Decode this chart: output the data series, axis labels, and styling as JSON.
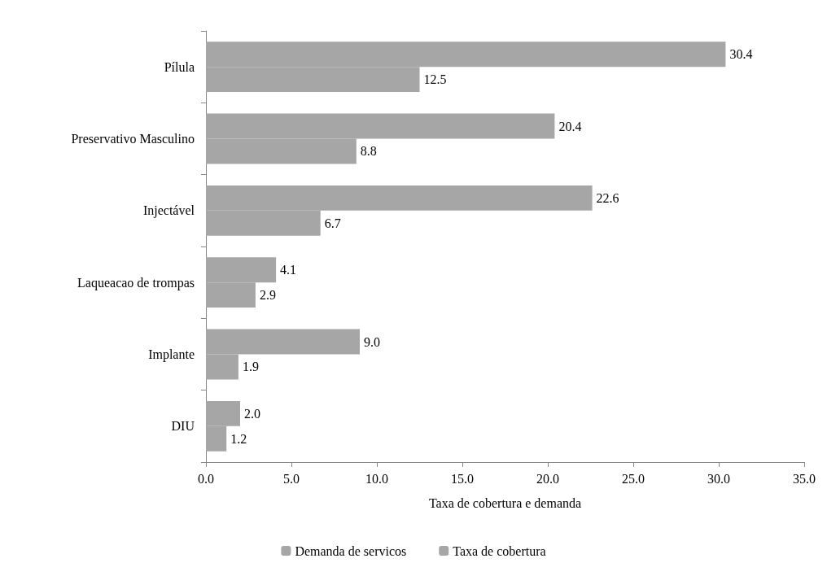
{
  "chart_data": {
    "type": "bar",
    "orientation": "horizontal",
    "xlabel": "Taxa de cobertura e demanda",
    "categories": [
      "Pílula",
      "Preservativo Masculino",
      "Injectável",
      "Laqueacao de trompas",
      "Implante",
      "DIU"
    ],
    "series": [
      {
        "name": "Demanda de servicos",
        "color": "#a6a6a6",
        "values": [
          30.4,
          20.4,
          22.6,
          4.1,
          9.0,
          2.0
        ],
        "value_labels": [
          "30.4",
          "20.4",
          "22.6",
          "4.1",
          "9.0",
          "2.0"
        ]
      },
      {
        "name": "Taxa de cobertura",
        "color": "#a6a6a6",
        "values": [
          12.5,
          8.8,
          6.7,
          2.9,
          1.9,
          1.2
        ],
        "value_labels": [
          "12.5",
          "8.8",
          "6.7",
          "2.9",
          "1.9",
          "1.2"
        ]
      }
    ],
    "xlim": [
      0,
      35
    ],
    "xticks": [
      {
        "value": 0,
        "label": "0.0"
      },
      {
        "value": 5,
        "label": "5.0"
      },
      {
        "value": 10,
        "label": "10.0"
      },
      {
        "value": 15,
        "label": "15.0"
      },
      {
        "value": 20,
        "label": "20.0"
      },
      {
        "value": 25,
        "label": "25.0"
      },
      {
        "value": 30,
        "label": "30.0"
      },
      {
        "value": 35,
        "label": "35.0"
      }
    ],
    "grid": false,
    "legend": "bottom"
  }
}
